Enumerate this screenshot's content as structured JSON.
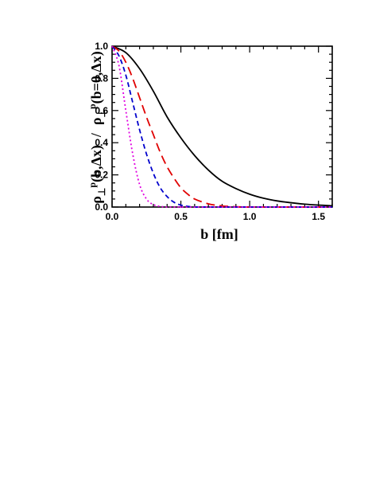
{
  "chart_data": {
    "type": "line",
    "xlabel": "b  [fm]",
    "ylabel_parts": {
      "num_rho": "ρ",
      "num_sub": "⊥",
      "num_sup": "p",
      "num_args": "(b,Δx)",
      "slash": "/",
      "den_rho": "ρ",
      "den_sub": "⊥",
      "den_sup": "p",
      "den_args": "(b=0,Δx)"
    },
    "xlim": [
      0,
      1.6
    ],
    "ylim": [
      0,
      1.0
    ],
    "x_ticks": [
      0.0,
      0.5,
      1.0,
      1.5
    ],
    "x_tick_labels": [
      "0.0",
      "0.5",
      "1.0",
      "1.5"
    ],
    "y_ticks": [
      0.0,
      0.2,
      0.4,
      0.6,
      0.8,
      1.0
    ],
    "y_tick_labels": [
      "0.0",
      "0.2",
      "0.4",
      "0.6",
      "0.8",
      "1.0"
    ],
    "grid": false,
    "series": [
      {
        "color": "#000000",
        "style": "solid",
        "x": [
          0.0,
          0.1,
          0.2,
          0.3,
          0.4,
          0.5,
          0.6,
          0.7,
          0.8,
          0.9,
          1.0,
          1.1,
          1.2,
          1.3,
          1.4,
          1.5,
          1.6
        ],
        "y": [
          1.0,
          0.96,
          0.86,
          0.72,
          0.56,
          0.43,
          0.32,
          0.23,
          0.16,
          0.115,
          0.08,
          0.055,
          0.038,
          0.027,
          0.018,
          0.012,
          0.008
        ]
      },
      {
        "color": "#e00000",
        "style": "long-dash",
        "x": [
          0.0,
          0.05,
          0.1,
          0.15,
          0.2,
          0.25,
          0.3,
          0.35,
          0.4,
          0.45,
          0.5,
          0.55,
          0.6,
          0.7,
          0.8,
          0.9,
          1.0,
          1.2,
          1.6
        ],
        "y": [
          1.0,
          0.97,
          0.9,
          0.8,
          0.68,
          0.56,
          0.45,
          0.34,
          0.25,
          0.18,
          0.12,
          0.08,
          0.05,
          0.02,
          0.007,
          0.002,
          0.0,
          0.0,
          0.0
        ]
      },
      {
        "color": "#0000cc",
        "style": "dash",
        "x": [
          0.0,
          0.05,
          0.1,
          0.15,
          0.2,
          0.25,
          0.3,
          0.35,
          0.4,
          0.45,
          0.5,
          0.55,
          0.6,
          0.7,
          0.8,
          1.6
        ],
        "y": [
          1.0,
          0.94,
          0.82,
          0.65,
          0.48,
          0.33,
          0.21,
          0.12,
          0.065,
          0.03,
          0.012,
          0.004,
          0.0,
          0.0,
          0.0,
          0.0
        ]
      },
      {
        "color": "#e000e0",
        "style": "dot",
        "x": [
          0.0,
          0.05,
          0.1,
          0.15,
          0.2,
          0.25,
          0.3,
          0.35,
          0.4,
          0.45,
          0.5,
          0.6,
          1.6
        ],
        "y": [
          1.0,
          0.88,
          0.6,
          0.33,
          0.14,
          0.05,
          0.015,
          0.004,
          0.0,
          0.0,
          0.0,
          0.0,
          0.0
        ]
      }
    ]
  }
}
